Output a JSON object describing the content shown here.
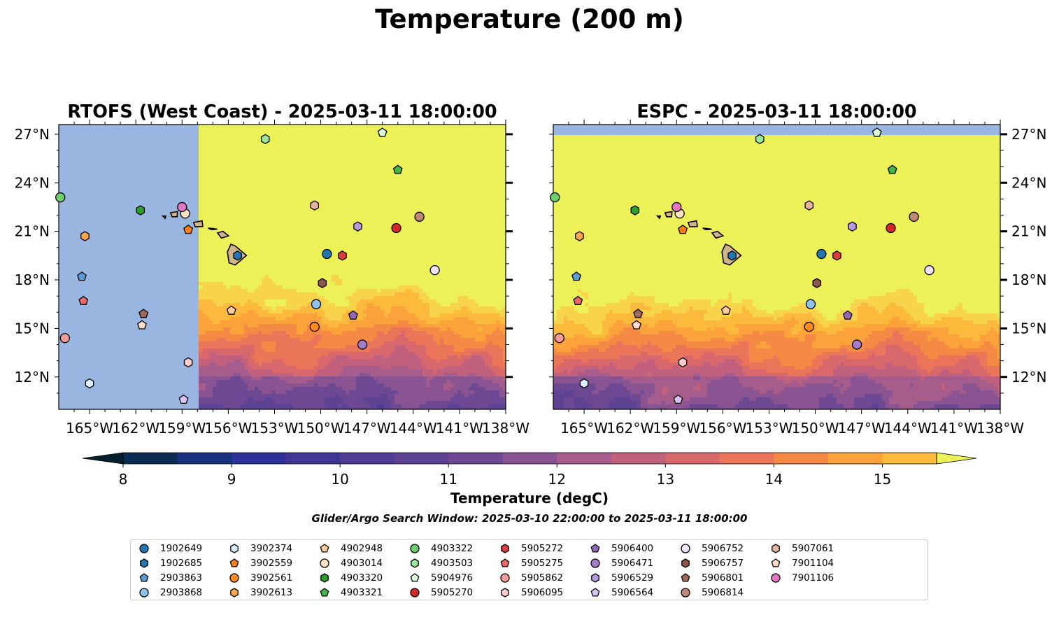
{
  "title": "Temperature (200 m)",
  "panels": [
    {
      "title": "RTOFS (West Coast) - 2025-03-11 18:00:00",
      "model": "RTOFS"
    },
    {
      "title": "ESPC - 2025-03-11 18:00:00",
      "model": "ESPC"
    }
  ],
  "colorbar": {
    "label": "Temperature (degC)",
    "ticks": [
      "8",
      "9",
      "10",
      "11",
      "12",
      "13",
      "14",
      "15"
    ],
    "levels": [
      8,
      8.5,
      9,
      9.5,
      10,
      10.5,
      11,
      11.5,
      12,
      12.5,
      13,
      13.5,
      14,
      14.5,
      15,
      15.5
    ],
    "extend": "both",
    "colormap": "thermal",
    "colors": [
      "#05202d",
      "#0a2c52",
      "#16317e",
      "#2c329a",
      "#403795",
      "#503b96",
      "#5e4294",
      "#6d4994",
      "#8a5493",
      "#a65d8b",
      "#c1617e",
      "#d9686d",
      "#ea7558",
      "#f58a45",
      "#fba23b",
      "#fbba3b",
      "#f8d44a",
      "#ecf158"
    ],
    "land_color": "#d2b48c",
    "nodata_color": "#98b6e0"
  },
  "search_window": "Glider/Argo Search Window: 2025-03-10 22:00:00 to 2025-03-11 18:00:00",
  "chart_data": {
    "type": "map",
    "x_axis": {
      "label": "longitude",
      "ticks": [
        "165°W",
        "162°W",
        "159°W",
        "156°W",
        "153°W",
        "150°W",
        "147°W",
        "144°W",
        "141°W",
        "138°W"
      ],
      "range": [
        -167,
        -138
      ]
    },
    "y_axis": {
      "label": "latitude",
      "ticks": [
        "12°N",
        "15°N",
        "18°N",
        "21°N",
        "24°N",
        "27°N"
      ],
      "range": [
        10,
        27.6
      ]
    },
    "rtofs_coverage_lon_min": -157.9,
    "platforms": [
      {
        "id": "1902649",
        "lon": -149.6,
        "lat": 19.6,
        "marker": "circle",
        "color": "#1f77b4"
      },
      {
        "id": "1902685",
        "lon": -155.4,
        "lat": 19.5,
        "marker": "hexagon",
        "color": "#1f77b4"
      },
      {
        "id": "2903863",
        "lon": -165.5,
        "lat": 18.2,
        "marker": "pentagon",
        "color": "#5a9bd5"
      },
      {
        "id": "2903868",
        "lon": -150.3,
        "lat": 16.5,
        "marker": "circle",
        "color": "#8cc4ee"
      },
      {
        "id": "3902374",
        "lon": -165.0,
        "lat": 11.6,
        "marker": "hexagon",
        "color": "#dbeeff"
      },
      {
        "id": "3902559",
        "lon": -158.6,
        "lat": 21.1,
        "marker": "pentagon",
        "color": "#ff7f0e"
      },
      {
        "id": "3902561",
        "lon": -150.4,
        "lat": 15.1,
        "marker": "circle",
        "color": "#ff8c1a"
      },
      {
        "id": "3902613",
        "lon": -165.3,
        "lat": 20.7,
        "marker": "hexagon",
        "color": "#ffa64d"
      },
      {
        "id": "4902948",
        "lon": -155.8,
        "lat": 16.1,
        "marker": "pentagon",
        "color": "#ffcc99"
      },
      {
        "id": "4903014",
        "lon": -158.8,
        "lat": 22.1,
        "marker": "circle",
        "color": "#ffe0c2"
      },
      {
        "id": "4903320",
        "lon": -161.7,
        "lat": 22.3,
        "marker": "hexagon",
        "color": "#2ca02c"
      },
      {
        "id": "4903321",
        "lon": -145.0,
        "lat": 24.8,
        "marker": "pentagon",
        "color": "#45b545"
      },
      {
        "id": "4903322",
        "lon": -166.9,
        "lat": 23.1,
        "marker": "circle",
        "color": "#6bcf6b"
      },
      {
        "id": "4903503",
        "lon": -153.6,
        "lat": 26.7,
        "marker": "hexagon",
        "color": "#9be89b"
      },
      {
        "id": "5904976",
        "lon": -146.0,
        "lat": 27.1,
        "marker": "pentagon",
        "color": "#d9fcd9"
      },
      {
        "id": "5905270",
        "lon": -145.1,
        "lat": 21.2,
        "marker": "circle",
        "color": "#d62728"
      },
      {
        "id": "5905272",
        "lon": -148.6,
        "lat": 19.5,
        "marker": "hexagon",
        "color": "#e03c3c"
      },
      {
        "id": "5905275",
        "lon": -165.4,
        "lat": 16.7,
        "marker": "pentagon",
        "color": "#ec6666"
      },
      {
        "id": "5905862",
        "lon": -166.6,
        "lat": 14.4,
        "marker": "circle",
        "color": "#f39a9a"
      },
      {
        "id": "5906095",
        "lon": -158.6,
        "lat": 12.9,
        "marker": "hexagon",
        "color": "#fdcccc"
      },
      {
        "id": "5906400",
        "lon": -147.9,
        "lat": 15.8,
        "marker": "pentagon",
        "color": "#9467bd"
      },
      {
        "id": "5906471",
        "lon": -147.3,
        "lat": 14.0,
        "marker": "circle",
        "color": "#a47bcd"
      },
      {
        "id": "5906529",
        "lon": -147.6,
        "lat": 21.3,
        "marker": "hexagon",
        "color": "#b799e3"
      },
      {
        "id": "5906564",
        "lon": -158.9,
        "lat": 10.6,
        "marker": "pentagon",
        "color": "#d8c5f5"
      },
      {
        "id": "5906752",
        "lon": -142.6,
        "lat": 18.6,
        "marker": "circle",
        "color": "#efe1ff"
      },
      {
        "id": "5906757",
        "lon": -149.9,
        "lat": 17.8,
        "marker": "hexagon",
        "color": "#8c564b"
      },
      {
        "id": "5906801",
        "lon": -161.5,
        "lat": 15.9,
        "marker": "pentagon",
        "color": "#a06a5c"
      },
      {
        "id": "5906814",
        "lon": -143.6,
        "lat": 21.9,
        "marker": "circle",
        "color": "#c08878"
      },
      {
        "id": "5907061",
        "lon": -150.4,
        "lat": 22.6,
        "marker": "hexagon",
        "color": "#e8b4a2"
      },
      {
        "id": "7901104",
        "lon": -161.6,
        "lat": 15.2,
        "marker": "pentagon",
        "color": "#ffdcc9"
      },
      {
        "id": "7901106",
        "lon": -159.0,
        "lat": 22.5,
        "marker": "circle",
        "color": "#e377c2"
      }
    ]
  }
}
